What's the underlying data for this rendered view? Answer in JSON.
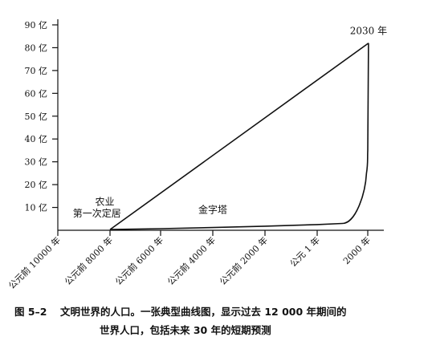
{
  "chart_data": {
    "type": "line",
    "title": "",
    "xlabel": "",
    "ylabel": "",
    "y_unit": "亿",
    "yticks": [
      {
        "value": 10,
        "label": "10 亿"
      },
      {
        "value": 20,
        "label": "20 亿"
      },
      {
        "value": 30,
        "label": "30 亿"
      },
      {
        "value": 40,
        "label": "40 亿"
      },
      {
        "value": 50,
        "label": "50 亿"
      },
      {
        "value": 60,
        "label": "60 亿"
      },
      {
        "value": 70,
        "label": "70 亿"
      },
      {
        "value": 80,
        "label": "80 亿"
      },
      {
        "value": 90,
        "label": "90 亿"
      }
    ],
    "xticks": [
      {
        "value": -10000,
        "label": "公元前 10000 年"
      },
      {
        "value": -8000,
        "label": "公元前 8000 年"
      },
      {
        "value": -6000,
        "label": "公元前 6000 年"
      },
      {
        "value": -4000,
        "label": "公元前 4000 年"
      },
      {
        "value": -2000,
        "label": "公元前 2000 年"
      },
      {
        "value": 1,
        "label": "公元 1 年"
      },
      {
        "value": 2000,
        "label": "2000 年"
      }
    ],
    "xlim": [
      -10000,
      2500
    ],
    "ylim": [
      0,
      90
    ],
    "grid": false,
    "series": [
      {
        "style": "solid",
        "points": [
          {
            "x": -8000,
            "y": 0.3
          },
          {
            "x": -6000,
            "y": 0.7
          },
          {
            "x": -4000,
            "y": 1.2
          },
          {
            "x": -2000,
            "y": 1.8
          },
          {
            "x": 0,
            "y": 2.5
          },
          {
            "x": 1000,
            "y": 3.0
          },
          {
            "x": 1500,
            "y": 4.5
          },
          {
            "x": 1800,
            "y": 9.0
          },
          {
            "x": 1900,
            "y": 16.0
          },
          {
            "x": 1950,
            "y": 25.0
          },
          {
            "x": 2000,
            "y": 35.0
          },
          {
            "x": 2030,
            "y": 82.0
          }
        ]
      },
      {
        "style": "solid",
        "points": [
          {
            "x": -8000,
            "y": 0.3
          },
          {
            "x": 2030,
            "y": 82.0
          }
        ]
      }
    ],
    "annotations": [
      {
        "text": "2030 年",
        "x": 2030,
        "y": 86
      },
      {
        "text": "农业",
        "x": -8200,
        "y": 11
      },
      {
        "text": "第一次定居",
        "x": -8500,
        "y": 6
      },
      {
        "text": "金字塔",
        "x": -4000,
        "y": 7.5
      }
    ]
  },
  "caption": {
    "label": "图 5–2",
    "line1": "文明世界的人口。一张典型曲线图，显示过去 12 000 年期间的",
    "line2": "世界人口，包括未来 30 年的短期预测"
  }
}
